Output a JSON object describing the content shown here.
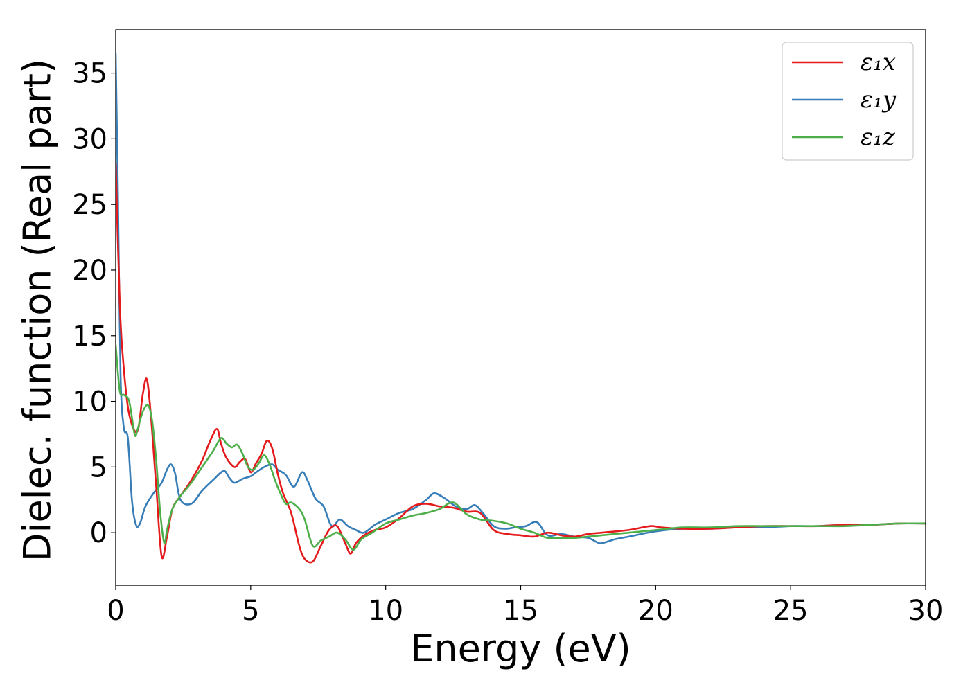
{
  "chart_data": {
    "type": "line",
    "title": "",
    "xlabel": "Energy (eV)",
    "ylabel": "Dielec. function (Real part)",
    "xlim": [
      0,
      30
    ],
    "ylim": [
      -4,
      38.3
    ],
    "xticks": [
      "0",
      "5",
      "10",
      "15",
      "20",
      "25",
      "30"
    ],
    "yticks": [
      "0",
      "5",
      "10",
      "15",
      "20",
      "25",
      "30",
      "35"
    ],
    "grid": false,
    "legend_position": "top-right",
    "series": [
      {
        "name": "ε₁x",
        "color": "#e41a1c",
        "x": [
          0.0,
          0.15,
          0.3,
          0.5,
          0.8,
          1.0,
          1.15,
          1.3,
          1.5,
          1.7,
          1.9,
          2.1,
          2.4,
          2.8,
          3.2,
          3.5,
          3.75,
          3.9,
          4.1,
          4.4,
          4.6,
          4.8,
          5.0,
          5.2,
          5.4,
          5.6,
          5.8,
          6.0,
          6.2,
          6.5,
          6.8,
          7.0,
          7.3,
          7.6,
          7.9,
          8.2,
          8.5,
          8.7,
          8.9,
          9.2,
          9.6,
          10.0,
          10.5,
          11.0,
          11.5,
          12.0,
          12.5,
          13.0,
          13.5,
          14.0,
          14.5,
          15.0,
          15.5,
          16.0,
          16.5,
          17.0,
          17.5,
          18.0,
          19.0,
          19.8,
          20.2,
          21.0,
          22.0,
          23.0,
          24.0,
          25.0,
          26.0,
          27.0,
          28.0,
          29.0,
          30.0
        ],
        "y": [
          28.2,
          17.5,
          12.5,
          9.0,
          7.7,
          10.5,
          11.7,
          9.0,
          3.5,
          -1.8,
          -0.3,
          1.8,
          2.8,
          4.0,
          5.5,
          7.0,
          7.9,
          6.8,
          5.7,
          5.0,
          5.4,
          5.6,
          4.6,
          5.3,
          6.0,
          7.0,
          6.4,
          4.5,
          3.0,
          1.5,
          -1.0,
          -2.0,
          -2.2,
          -1.0,
          0.2,
          0.5,
          -0.8,
          -1.6,
          -0.8,
          -0.2,
          0.2,
          0.4,
          1.1,
          2.0,
          2.2,
          2.0,
          1.9,
          1.6,
          1.5,
          0.2,
          -0.1,
          -0.2,
          -0.3,
          0.0,
          -0.2,
          -0.3,
          -0.1,
          0.0,
          0.2,
          0.5,
          0.4,
          0.3,
          0.3,
          0.4,
          0.5,
          0.5,
          0.5,
          0.6,
          0.6,
          0.7,
          0.7
        ]
      },
      {
        "name": "ε₁y",
        "color": "#377eb8",
        "x": [
          0.0,
          0.08,
          0.18,
          0.3,
          0.45,
          0.6,
          0.75,
          0.9,
          1.1,
          1.4,
          1.7,
          1.9,
          2.05,
          2.2,
          2.4,
          2.8,
          3.2,
          3.6,
          4.0,
          4.2,
          4.4,
          4.7,
          5.0,
          5.2,
          5.5,
          5.8,
          6.0,
          6.3,
          6.6,
          6.9,
          7.1,
          7.4,
          7.7,
          8.0,
          8.3,
          8.6,
          8.9,
          9.2,
          9.6,
          10.0,
          10.5,
          11.0,
          11.5,
          11.8,
          12.2,
          12.6,
          13.0,
          13.3,
          13.6,
          14.0,
          14.4,
          14.8,
          15.2,
          15.6,
          16.0,
          16.5,
          17.0,
          17.5,
          17.8,
          18.0,
          18.5,
          19.0,
          20.0,
          21.0,
          22.0,
          23.0,
          24.0,
          25.0,
          26.0,
          27.0,
          28.0,
          29.0,
          30.0
        ],
        "y": [
          36.5,
          26.0,
          12.0,
          8.0,
          7.2,
          2.5,
          0.6,
          0.7,
          2.0,
          3.0,
          3.8,
          4.8,
          5.2,
          4.5,
          2.5,
          2.2,
          3.2,
          4.0,
          4.7,
          4.2,
          3.8,
          4.1,
          4.3,
          4.6,
          5.0,
          5.2,
          4.8,
          4.4,
          3.5,
          4.6,
          4.0,
          2.6,
          2.0,
          0.5,
          1.0,
          0.5,
          0.2,
          0.0,
          0.6,
          1.0,
          1.5,
          1.8,
          2.5,
          3.0,
          2.6,
          2.0,
          1.8,
          2.1,
          1.5,
          0.5,
          0.3,
          0.4,
          0.5,
          0.8,
          -0.2,
          -0.1,
          -0.3,
          -0.4,
          -0.7,
          -0.8,
          -0.5,
          -0.3,
          0.1,
          0.3,
          0.3,
          0.4,
          0.4,
          0.5,
          0.5,
          0.6,
          0.6,
          0.7,
          0.7
        ]
      },
      {
        "name": "ε₁z",
        "color": "#4daf4a",
        "x": [
          0.0,
          0.15,
          0.3,
          0.5,
          0.7,
          0.8,
          1.0,
          1.2,
          1.35,
          1.5,
          1.65,
          1.8,
          1.9,
          2.1,
          2.4,
          2.8,
          3.2,
          3.6,
          3.9,
          4.1,
          4.3,
          4.5,
          4.7,
          4.9,
          5.1,
          5.3,
          5.5,
          5.7,
          5.9,
          6.1,
          6.3,
          6.5,
          6.8,
          7.0,
          7.3,
          7.6,
          7.9,
          8.2,
          8.5,
          8.8,
          9.1,
          9.5,
          10.0,
          10.5,
          11.0,
          11.5,
          12.0,
          12.5,
          13.0,
          13.5,
          14.0,
          14.5,
          15.0,
          15.5,
          16.0,
          16.5,
          17.0,
          17.5,
          18.0,
          19.0,
          20.0,
          21.0,
          22.0,
          23.0,
          24.0,
          25.0,
          26.0,
          27.0,
          28.0,
          29.0,
          30.0
        ],
        "y": [
          14.3,
          10.8,
          10.5,
          10.0,
          7.5,
          7.8,
          9.2,
          9.7,
          8.5,
          5.5,
          1.5,
          -0.8,
          0.2,
          1.8,
          2.8,
          3.8,
          5.0,
          6.2,
          7.2,
          6.8,
          6.5,
          6.7,
          6.0,
          5.0,
          4.8,
          5.3,
          5.9,
          5.2,
          4.0,
          3.0,
          2.2,
          2.3,
          1.8,
          1.0,
          -1.0,
          -0.6,
          -0.3,
          0.0,
          -0.5,
          -1.3,
          -0.5,
          0.0,
          0.7,
          1.0,
          1.3,
          1.5,
          1.8,
          2.3,
          1.4,
          1.0,
          0.9,
          0.7,
          0.3,
          0.0,
          -0.4,
          -0.4,
          -0.4,
          -0.3,
          -0.2,
          0.0,
          0.2,
          0.4,
          0.4,
          0.5,
          0.5,
          0.5,
          0.5,
          0.5,
          0.6,
          0.7,
          0.7
        ]
      }
    ]
  }
}
